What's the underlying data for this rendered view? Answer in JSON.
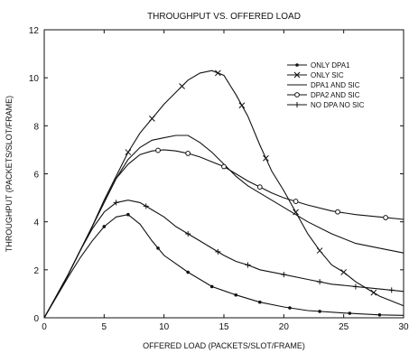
{
  "chart_data": {
    "type": "line",
    "title": "THROUGHPUT VS. OFFERED LOAD",
    "xlabel": "OFFERED LOAD (PACKETS/SLOT/FRAME)",
    "ylabel": "THROUGHPUT (PACKETS/SLOT/FRAME)",
    "xlim": [
      0,
      30
    ],
    "ylim": [
      0,
      12
    ],
    "xticks": [
      0,
      5,
      10,
      15,
      20,
      25,
      30
    ],
    "yticks": [
      0,
      2,
      4,
      6,
      8,
      10,
      12
    ],
    "grid": false,
    "legend_position": "top-right",
    "series": [
      {
        "name": "ONLY DPA1",
        "marker": "dot",
        "color": "#111111",
        "x": [
          0,
          1,
          2,
          3,
          4,
          5,
          6,
          7,
          8,
          9,
          10,
          12,
          14,
          16,
          18,
          20,
          22,
          25,
          28,
          30
        ],
        "y": [
          0,
          0.85,
          1.7,
          2.5,
          3.2,
          3.8,
          4.2,
          4.3,
          3.9,
          3.2,
          2.6,
          1.9,
          1.3,
          0.95,
          0.65,
          0.45,
          0.3,
          0.2,
          0.12,
          0.1
        ],
        "marker_x": [
          5,
          7,
          9.5,
          12,
          14,
          16,
          18,
          20.5,
          23,
          25.5,
          28
        ]
      },
      {
        "name": "ONLY SIC",
        "marker": "x",
        "color": "#111111",
        "x": [
          0,
          1,
          2,
          3,
          4,
          5,
          6,
          7,
          8,
          9,
          10,
          11,
          12,
          13,
          14,
          15,
          16,
          17,
          18,
          19,
          20,
          21,
          22,
          23,
          24,
          25,
          26,
          27,
          28,
          29,
          30
        ],
        "y": [
          0,
          0.9,
          1.8,
          2.8,
          3.8,
          4.9,
          5.9,
          6.9,
          7.7,
          8.3,
          8.9,
          9.4,
          9.9,
          10.2,
          10.3,
          10.1,
          9.3,
          8.4,
          7.2,
          6.1,
          5.3,
          4.4,
          3.5,
          2.8,
          2.2,
          1.9,
          1.5,
          1.2,
          0.9,
          0.7,
          0.5
        ],
        "marker_x": [
          7,
          9,
          11.5,
          14.5,
          16.5,
          18.5,
          21,
          23,
          25,
          27.5
        ]
      },
      {
        "name": "DPA1 AND SIC",
        "marker": "none",
        "color": "#111111",
        "x": [
          0,
          1,
          2,
          3,
          4,
          5,
          6,
          7,
          8,
          9,
          10,
          11,
          12,
          13,
          14,
          15,
          16,
          17,
          18,
          20,
          22,
          24,
          26,
          28,
          30
        ],
        "y": [
          0,
          0.9,
          1.8,
          2.8,
          3.8,
          4.8,
          5.8,
          6.6,
          7.1,
          7.4,
          7.5,
          7.6,
          7.6,
          7.3,
          6.9,
          6.4,
          5.9,
          5.5,
          5.2,
          4.6,
          4.0,
          3.5,
          3.1,
          2.9,
          2.7
        ]
      },
      {
        "name": "DPA2 AND SIC",
        "marker": "circle",
        "color": "#111111",
        "x": [
          0,
          1,
          2,
          3,
          4,
          5,
          6,
          7,
          8,
          9,
          10,
          11,
          12,
          13,
          14,
          15,
          16,
          17,
          18,
          19,
          20,
          22,
          24,
          26,
          28,
          30
        ],
        "y": [
          0,
          0.9,
          1.8,
          2.8,
          3.8,
          4.8,
          5.8,
          6.4,
          6.8,
          6.95,
          7.0,
          6.95,
          6.85,
          6.7,
          6.5,
          6.3,
          6.0,
          5.7,
          5.45,
          5.2,
          5.0,
          4.7,
          4.45,
          4.3,
          4.2,
          4.1
        ],
        "marker_x": [
          9.5,
          12,
          15,
          18,
          21,
          24.5,
          28.5
        ]
      },
      {
        "name": "NO DPA NO SIC",
        "marker": "plus",
        "color": "#111111",
        "x": [
          0,
          1,
          2,
          3,
          4,
          5,
          6,
          7,
          8,
          9,
          10,
          11,
          12,
          13,
          14,
          15,
          16,
          17,
          18,
          20,
          22,
          24,
          26,
          28,
          30
        ],
        "y": [
          0,
          0.9,
          1.8,
          2.8,
          3.7,
          4.4,
          4.8,
          4.9,
          4.8,
          4.5,
          4.2,
          3.8,
          3.5,
          3.2,
          2.9,
          2.6,
          2.35,
          2.2,
          2.0,
          1.8,
          1.6,
          1.4,
          1.3,
          1.2,
          1.1
        ],
        "marker_x": [
          6,
          8.5,
          12,
          14.5,
          17,
          20,
          23,
          26,
          29
        ]
      }
    ]
  }
}
